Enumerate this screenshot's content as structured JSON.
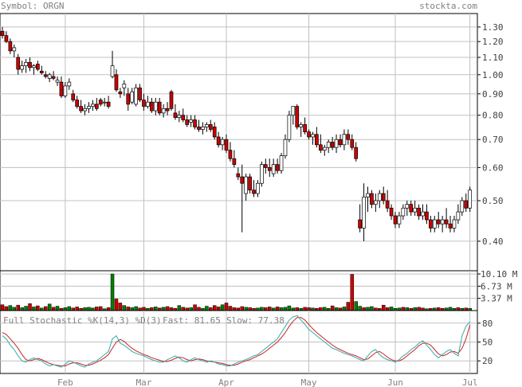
{
  "header": {
    "symbol_label": "Symbol: ORGN",
    "site": "stockta.com"
  },
  "colors": {
    "up": "#ffffff",
    "down": "#cc0000",
    "vol_up": "#008000",
    "vol_down": "#cc0000",
    "fast": "#33aaaa",
    "slow": "#cc2222",
    "grid": "#c0c0c0",
    "axis": "#000000"
  },
  "price_axis": {
    "ticks": [
      "1.30",
      "1.20",
      "1.10",
      "1.00",
      "0.90",
      "0.80",
      "0.70",
      "0.60",
      "0.50",
      "0.40"
    ],
    "scale": "log",
    "range": [
      0.34,
      1.4
    ]
  },
  "volume_axis": {
    "ticks": [
      "10.10 M",
      "6.73 M",
      "3.37 M"
    ],
    "range": [
      0,
      11.0
    ]
  },
  "stoch_axis": {
    "ticks": [
      "80",
      "50",
      "20"
    ],
    "range": [
      0,
      100
    ]
  },
  "x_axis": {
    "labels": [
      "Feb",
      "Mar",
      "Apr",
      "May",
      "Jun",
      "Jul"
    ]
  },
  "stochastic": {
    "title": "Full Stochastic %K(14,3) %D(3)",
    "fast_label": "Fast: 81.65",
    "slow_label": "Slow: 77.38"
  },
  "chart_data": {
    "type": "candlestick",
    "symbol": "ORGN",
    "months": [
      {
        "label": "Feb",
        "index": 16
      },
      {
        "label": "Mar",
        "index": 36
      },
      {
        "label": "Apr",
        "index": 57
      },
      {
        "label": "May",
        "index": 78
      },
      {
        "label": "Jun",
        "index": 100
      },
      {
        "label": "Jul",
        "index": 119
      }
    ],
    "price": [
      [
        1.27,
        1.3,
        1.22,
        1.24
      ],
      [
        1.24,
        1.27,
        1.19,
        1.2
      ],
      [
        1.2,
        1.22,
        1.12,
        1.14
      ],
      [
        1.14,
        1.18,
        1.1,
        1.16
      ],
      [
        1.1,
        1.12,
        1.0,
        1.03
      ],
      [
        1.03,
        1.08,
        1.01,
        1.05
      ],
      [
        1.05,
        1.09,
        1.01,
        1.07
      ],
      [
        1.07,
        1.1,
        1.02,
        1.04
      ],
      [
        1.04,
        1.06,
        1.0,
        1.05
      ],
      [
        1.06,
        1.08,
        1.02,
        1.03
      ],
      [
        1.02,
        1.05,
        1.0,
        1.01
      ],
      [
        1.0,
        1.02,
        0.98,
        0.99
      ],
      [
        0.98,
        1.01,
        0.96,
        1.0
      ],
      [
        0.99,
        1.02,
        0.97,
        0.98
      ],
      [
        0.96,
        0.99,
        0.94,
        0.97
      ],
      [
        0.96,
        0.99,
        0.88,
        0.89
      ],
      [
        0.89,
        0.96,
        0.88,
        0.94
      ],
      [
        0.94,
        0.98,
        0.92,
        0.96
      ],
      [
        0.9,
        0.92,
        0.86,
        0.87
      ],
      [
        0.87,
        0.89,
        0.83,
        0.84
      ],
      [
        0.84,
        0.87,
        0.81,
        0.82
      ],
      [
        0.82,
        0.85,
        0.8,
        0.83
      ],
      [
        0.83,
        0.86,
        0.81,
        0.84
      ],
      [
        0.84,
        0.87,
        0.82,
        0.85
      ],
      [
        0.85,
        0.88,
        0.82,
        0.83
      ],
      [
        0.87,
        0.88,
        0.84,
        0.85
      ],
      [
        0.86,
        0.88,
        0.84,
        0.86
      ],
      [
        0.86,
        0.89,
        0.83,
        0.84
      ],
      [
        0.99,
        1.14,
        0.98,
        1.05
      ],
      [
        1.0,
        1.03,
        0.91,
        0.92
      ],
      [
        0.91,
        0.93,
        0.88,
        0.9
      ],
      [
        0.93,
        0.97,
        0.89,
        0.95
      ],
      [
        0.9,
        0.93,
        0.82,
        0.85
      ],
      [
        0.86,
        0.93,
        0.85,
        0.91
      ],
      [
        0.85,
        0.95,
        0.84,
        0.93
      ],
      [
        0.93,
        0.95,
        0.86,
        0.87
      ],
      [
        0.87,
        0.9,
        0.82,
        0.84
      ],
      [
        0.84,
        0.89,
        0.83,
        0.86
      ],
      [
        0.86,
        0.88,
        0.81,
        0.82
      ],
      [
        0.82,
        0.88,
        0.8,
        0.86
      ],
      [
        0.86,
        0.88,
        0.8,
        0.81
      ],
      [
        0.81,
        0.85,
        0.79,
        0.83
      ],
      [
        0.83,
        0.86,
        0.8,
        0.82
      ],
      [
        0.91,
        0.92,
        0.82,
        0.83
      ],
      [
        0.81,
        0.85,
        0.78,
        0.79
      ],
      [
        0.79,
        0.82,
        0.77,
        0.8
      ],
      [
        0.8,
        0.83,
        0.77,
        0.78
      ],
      [
        0.78,
        0.8,
        0.75,
        0.76
      ],
      [
        0.77,
        0.8,
        0.75,
        0.78
      ],
      [
        0.78,
        0.8,
        0.74,
        0.75
      ],
      [
        0.75,
        0.78,
        0.73,
        0.74
      ],
      [
        0.74,
        0.77,
        0.72,
        0.75
      ],
      [
        0.75,
        0.77,
        0.73,
        0.76
      ],
      [
        0.76,
        0.78,
        0.73,
        0.74
      ],
      [
        0.75,
        0.77,
        0.7,
        0.71
      ],
      [
        0.71,
        0.73,
        0.67,
        0.68
      ],
      [
        0.68,
        0.71,
        0.66,
        0.7
      ],
      [
        0.7,
        0.72,
        0.65,
        0.66
      ],
      [
        0.66,
        0.69,
        0.62,
        0.63
      ],
      [
        0.63,
        0.66,
        0.6,
        0.61
      ],
      [
        0.58,
        0.6,
        0.56,
        0.57
      ],
      [
        0.57,
        0.61,
        0.42,
        0.55
      ],
      [
        0.52,
        0.58,
        0.5,
        0.57
      ],
      [
        0.57,
        0.58,
        0.52,
        0.53
      ],
      [
        0.53,
        0.56,
        0.51,
        0.52
      ],
      [
        0.52,
        0.56,
        0.51,
        0.55
      ],
      [
        0.55,
        0.62,
        0.54,
        0.61
      ],
      [
        0.61,
        0.63,
        0.58,
        0.6
      ],
      [
        0.6,
        0.63,
        0.57,
        0.59
      ],
      [
        0.58,
        0.63,
        0.57,
        0.61
      ],
      [
        0.61,
        0.63,
        0.58,
        0.59
      ],
      [
        0.59,
        0.65,
        0.58,
        0.64
      ],
      [
        0.64,
        0.72,
        0.63,
        0.7
      ],
      [
        0.7,
        0.82,
        0.69,
        0.8
      ],
      [
        0.8,
        0.84,
        0.76,
        0.84
      ],
      [
        0.84,
        0.85,
        0.74,
        0.75
      ],
      [
        0.75,
        0.77,
        0.71,
        0.76
      ],
      [
        0.76,
        0.79,
        0.72,
        0.73
      ],
      [
        0.73,
        0.74,
        0.7,
        0.71
      ],
      [
        0.71,
        0.73,
        0.68,
        0.72
      ],
      [
        0.72,
        0.75,
        0.67,
        0.68
      ],
      [
        0.68,
        0.72,
        0.65,
        0.66
      ],
      [
        0.66,
        0.68,
        0.64,
        0.67
      ],
      [
        0.67,
        0.7,
        0.65,
        0.69
      ],
      [
        0.69,
        0.71,
        0.66,
        0.67
      ],
      [
        0.67,
        0.72,
        0.65,
        0.7
      ],
      [
        0.7,
        0.72,
        0.67,
        0.68
      ],
      [
        0.68,
        0.74,
        0.66,
        0.72
      ],
      [
        0.72,
        0.74,
        0.68,
        0.7
      ],
      [
        0.7,
        0.72,
        0.66,
        0.67
      ],
      [
        0.67,
        0.69,
        0.62,
        0.63
      ],
      [
        0.45,
        0.49,
        0.42,
        0.43
      ],
      [
        0.43,
        0.55,
        0.4,
        0.51
      ],
      [
        0.51,
        0.54,
        0.47,
        0.52
      ],
      [
        0.52,
        0.53,
        0.48,
        0.49
      ],
      [
        0.49,
        0.52,
        0.47,
        0.5
      ],
      [
        0.5,
        0.53,
        0.48,
        0.52
      ],
      [
        0.52,
        0.54,
        0.49,
        0.5
      ],
      [
        0.5,
        0.53,
        0.47,
        0.48
      ],
      [
        0.48,
        0.49,
        0.45,
        0.46
      ],
      [
        0.46,
        0.47,
        0.43,
        0.44
      ],
      [
        0.44,
        0.47,
        0.43,
        0.46
      ],
      [
        0.46,
        0.49,
        0.45,
        0.48
      ],
      [
        0.48,
        0.5,
        0.46,
        0.49
      ],
      [
        0.49,
        0.5,
        0.46,
        0.47
      ],
      [
        0.47,
        0.5,
        0.46,
        0.48
      ],
      [
        0.48,
        0.49,
        0.45,
        0.46
      ],
      [
        0.46,
        0.49,
        0.45,
        0.47
      ],
      [
        0.47,
        0.49,
        0.44,
        0.45
      ],
      [
        0.45,
        0.46,
        0.42,
        0.43
      ],
      [
        0.43,
        0.46,
        0.42,
        0.45
      ],
      [
        0.45,
        0.47,
        0.43,
        0.44
      ],
      [
        0.44,
        0.46,
        0.42,
        0.45
      ],
      [
        0.45,
        0.48,
        0.43,
        0.44
      ],
      [
        0.44,
        0.46,
        0.42,
        0.43
      ],
      [
        0.43,
        0.46,
        0.42,
        0.45
      ],
      [
        0.45,
        0.49,
        0.44,
        0.47
      ],
      [
        0.47,
        0.51,
        0.46,
        0.5
      ],
      [
        0.5,
        0.52,
        0.47,
        0.48
      ],
      [
        0.48,
        0.54,
        0.47,
        0.53
      ]
    ],
    "volume": [
      1.6,
      1.1,
      1.4,
      0.9,
      1.5,
      0.8,
      1.2,
      1.9,
      1.0,
      1.3,
      0.7,
      1.1,
      1.8,
      0.9,
      1.2,
      0.6,
      0.8,
      1.1,
      0.7,
      1.0,
      0.6,
      0.8,
      0.9,
      0.7,
      1.0,
      1.1,
      0.5,
      0.8,
      10.1,
      3.2,
      2.1,
      1.4,
      1.0,
      0.8,
      1.1,
      0.7,
      0.9,
      0.6,
      0.8,
      1.0,
      0.7,
      0.9,
      1.1,
      0.8,
      0.6,
      1.4,
      0.9,
      0.7,
      0.8,
      1.6,
      0.9,
      0.6,
      1.2,
      0.8,
      1.4,
      1.0,
      1.6,
      2.1,
      1.2,
      0.8,
      0.7,
      1.1,
      0.9,
      0.8,
      0.6,
      0.7,
      0.9,
      0.8,
      1.0,
      0.7,
      1.0,
      0.8,
      0.9,
      1.3,
      0.7,
      0.8,
      0.6,
      0.9,
      0.8,
      0.7,
      0.6,
      0.8,
      0.9,
      0.6,
      1.3,
      0.8,
      0.7,
      1.0,
      2.3,
      10.0,
      2.5,
      1.2,
      0.8,
      0.9,
      1.1,
      0.7,
      0.6,
      1.5,
      0.8,
      1.0,
      0.6,
      0.7,
      0.9,
      0.8,
      0.6,
      0.8,
      0.9,
      0.7,
      0.5,
      0.6,
      0.7,
      0.8,
      0.6,
      0.7,
      0.9,
      0.6,
      0.8,
      0.6,
      0.7,
      0.6
    ],
    "volume_up": [
      0,
      0,
      1,
      1,
      0,
      1,
      1,
      0,
      1,
      0,
      1,
      0,
      1,
      0,
      1,
      0,
      1,
      1,
      0,
      0,
      0,
      1,
      1,
      1,
      0,
      0,
      1,
      0,
      1,
      0,
      0,
      1,
      0,
      1,
      1,
      0,
      0,
      1,
      0,
      1,
      0,
      1,
      0,
      0,
      0,
      1,
      0,
      0,
      1,
      0,
      0,
      1,
      1,
      0,
      0,
      0,
      1,
      0,
      0,
      0,
      0,
      0,
      1,
      0,
      0,
      1,
      1,
      0,
      0,
      1,
      0,
      1,
      1,
      1,
      1,
      0,
      1,
      0,
      0,
      1,
      0,
      0,
      1,
      1,
      0,
      1,
      0,
      1,
      0,
      0,
      1,
      1,
      0,
      1,
      1,
      0,
      0,
      0,
      0,
      1,
      1,
      1,
      0,
      1,
      0,
      1,
      0,
      0,
      1,
      0,
      1,
      0,
      0,
      1,
      1,
      1,
      0,
      1,
      0,
      1
    ],
    "fast": [
      60,
      55,
      45,
      38,
      28,
      20,
      18,
      22,
      25,
      22,
      20,
      15,
      12,
      14,
      12,
      10,
      15,
      20,
      18,
      15,
      12,
      10,
      15,
      18,
      20,
      25,
      30,
      35,
      55,
      60,
      48,
      45,
      40,
      35,
      32,
      30,
      28,
      25,
      22,
      20,
      18,
      18,
      22,
      25,
      28,
      25,
      20,
      18,
      22,
      25,
      22,
      20,
      18,
      20,
      18,
      15,
      14,
      12,
      12,
      15,
      18,
      20,
      22,
      25,
      28,
      30,
      35,
      40,
      45,
      50,
      55,
      65,
      75,
      85,
      90,
      92,
      85,
      78,
      70,
      65,
      60,
      55,
      50,
      45,
      40,
      38,
      35,
      32,
      30,
      28,
      25,
      22,
      20,
      28,
      35,
      38,
      30,
      25,
      22,
      20,
      18,
      22,
      28,
      32,
      38,
      42,
      48,
      52,
      45,
      38,
      30,
      25,
      30,
      35,
      38,
      32,
      28,
      60,
      75,
      82
    ],
    "slow": [
      65,
      62,
      55,
      48,
      40,
      30,
      22,
      20,
      22,
      24,
      22,
      19,
      16,
      14,
      13,
      12,
      12,
      15,
      17,
      17,
      15,
      13,
      13,
      15,
      18,
      21,
      25,
      30,
      40,
      50,
      54,
      51,
      45,
      40,
      36,
      33,
      30,
      28,
      25,
      23,
      21,
      19,
      19,
      21,
      24,
      26,
      25,
      22,
      20,
      22,
      23,
      22,
      20,
      19,
      18,
      17,
      16,
      14,
      13,
      13,
      15,
      18,
      20,
      22,
      25,
      28,
      31,
      35,
      40,
      45,
      50,
      57,
      65,
      75,
      83,
      89,
      89,
      85,
      78,
      71,
      65,
      60,
      55,
      50,
      45,
      41,
      38,
      35,
      32,
      30,
      28,
      25,
      22,
      23,
      28,
      33,
      35,
      31,
      26,
      22,
      20,
      20,
      23,
      28,
      33,
      38,
      44,
      48,
      48,
      45,
      38,
      31,
      28,
      30,
      34,
      35,
      32,
      40,
      55,
      77
    ]
  }
}
